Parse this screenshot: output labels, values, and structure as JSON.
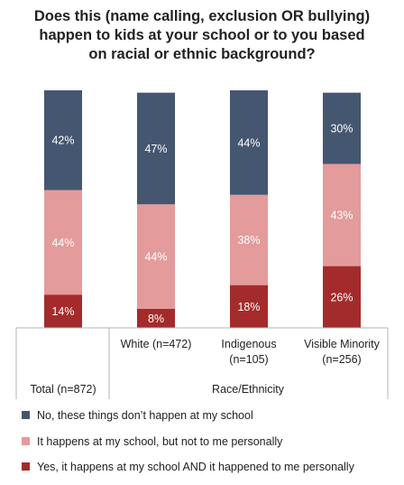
{
  "chart_data": {
    "type": "bar",
    "stacked": true,
    "title_lines": [
      "Does this (name calling, exclusion OR bullying)",
      "happen to kids at your school or to you based",
      "on racial or ethnic background?"
    ],
    "categories": [
      "Total (n=872)",
      "White (n=472)",
      "Indigenous (n=105)",
      "Visible Minority (n=256)"
    ],
    "category_lines": [
      [
        "Total (n=872)"
      ],
      [
        "White (n=472)"
      ],
      [
        "Indigenous",
        "(n=105)"
      ],
      [
        "Visible Minority",
        "(n=256)"
      ]
    ],
    "group_label": "Race/Ethnicity",
    "series": [
      {
        "name": "Yes, it happens at my school AND it happened to me personally",
        "values": [
          14,
          8,
          18,
          26
        ],
        "labels": [
          "14%",
          "8%",
          "18%",
          "26%"
        ],
        "color": "#a42b2b"
      },
      {
        "name": "It happens at my school, but not to me personally",
        "values": [
          44,
          44,
          38,
          43
        ],
        "labels": [
          "44%",
          "44%",
          "38%",
          "43%"
        ],
        "color": "#e39b9b"
      },
      {
        "name": "No, these things don’t happen at my school",
        "values": [
          42,
          47,
          44,
          30
        ],
        "labels": [
          "42%",
          "47%",
          "44%",
          "30%"
        ],
        "color": "#455670"
      }
    ],
    "legend_order": [
      2,
      1,
      0
    ],
    "ylim": [
      0,
      100
    ],
    "grid": false,
    "legend_position": "bottom"
  }
}
